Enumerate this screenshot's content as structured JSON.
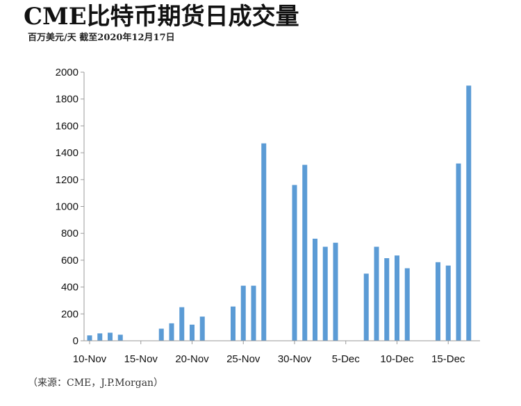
{
  "header": {
    "title": "CME比特币期货日成交量",
    "subtitle": "百万美元/天 截至2020年12月17日"
  },
  "footer": {
    "source": "（来源：CME，J.P.Morgan）"
  },
  "colors": {
    "bar": "#5b9bd5",
    "axis": "#9a9a9a"
  },
  "chart_data": {
    "type": "bar",
    "title": "CME比特币期货日成交量",
    "subtitle": "百万美元/天 截至2020年12月17日",
    "xlabel": "",
    "ylabel": "",
    "ylim": [
      0,
      2000
    ],
    "yticks": [
      0,
      200,
      400,
      600,
      800,
      1000,
      1200,
      1400,
      1600,
      1800,
      2000
    ],
    "grid": false,
    "legend": "none",
    "categories": [
      "10-Nov",
      "11-Nov",
      "12-Nov",
      "13-Nov",
      "14-Nov",
      "15-Nov",
      "16-Nov",
      "17-Nov",
      "18-Nov",
      "19-Nov",
      "20-Nov",
      "21-Nov",
      "22-Nov",
      "23-Nov",
      "24-Nov",
      "25-Nov",
      "26-Nov",
      "27-Nov",
      "28-Nov",
      "29-Nov",
      "30-Nov",
      "1-Dec",
      "2-Dec",
      "3-Dec",
      "4-Dec",
      "5-Dec",
      "6-Dec",
      "7-Dec",
      "8-Dec",
      "9-Dec",
      "10-Dec",
      "11-Dec",
      "12-Dec",
      "13-Dec",
      "14-Dec",
      "15-Dec",
      "16-Dec",
      "17-Dec"
    ],
    "values": [
      40,
      55,
      60,
      45,
      null,
      null,
      null,
      90,
      130,
      250,
      120,
      180,
      null,
      null,
      255,
      410,
      410,
      1470,
      null,
      null,
      1160,
      1310,
      760,
      700,
      730,
      null,
      null,
      500,
      700,
      615,
      635,
      540,
      null,
      null,
      585,
      560,
      1320,
      1900
    ],
    "xtick_labels": [
      {
        "label": "10-Nov",
        "index": 0
      },
      {
        "label": "15-Nov",
        "index": 5
      },
      {
        "label": "20-Nov",
        "index": 10
      },
      {
        "label": "25-Nov",
        "index": 15
      },
      {
        "label": "30-Nov",
        "index": 20
      },
      {
        "label": "5-Dec",
        "index": 25
      },
      {
        "label": "10-Dec",
        "index": 30
      },
      {
        "label": "15-Dec",
        "index": 35
      }
    ]
  }
}
